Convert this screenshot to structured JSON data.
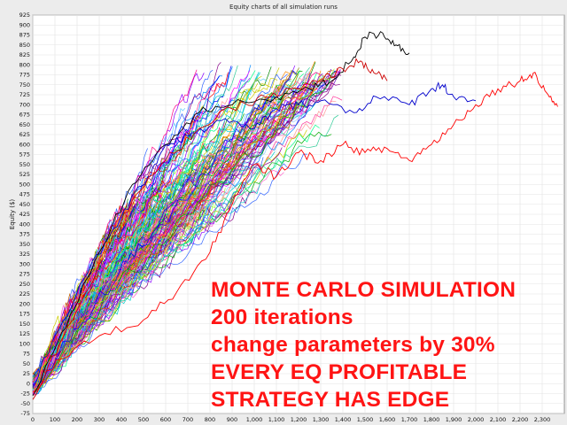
{
  "chart_data": {
    "type": "line",
    "title": "Equity charts of all simulation runs",
    "xlabel": "",
    "ylabel": "Equity ($)",
    "xlim": [
      0,
      2400
    ],
    "ylim": [
      -75,
      925
    ],
    "grid": true,
    "legend": "none",
    "x_ticks": [
      "0",
      "100",
      "200",
      "300",
      "400",
      "500",
      "600",
      "700",
      "800",
      "900",
      "1,000",
      "1,100",
      "1,200",
      "1,300",
      "1,400",
      "1,500",
      "1,600",
      "1,700",
      "1,800",
      "1,900",
      "2,000",
      "2,100",
      "2,200",
      "2,300"
    ],
    "y_ticks": [
      "-75",
      "-50",
      "-25",
      "0",
      "25",
      "50",
      "75",
      "100",
      "125",
      "150",
      "175",
      "200",
      "225",
      "250",
      "275",
      "300",
      "325",
      "350",
      "375",
      "400",
      "425",
      "450",
      "475",
      "500",
      "525",
      "550",
      "575",
      "600",
      "625",
      "650",
      "675",
      "700",
      "725",
      "750",
      "775",
      "800",
      "825",
      "850",
      "875",
      "900",
      "925"
    ],
    "highlight_series": [
      {
        "color": "#ff0000",
        "points": [
          [
            0,
            -20
          ],
          [
            120,
            60
          ],
          [
            300,
            120
          ],
          [
            500,
            160
          ],
          [
            650,
            230
          ],
          [
            800,
            330
          ],
          [
            900,
            450
          ],
          [
            1000,
            550
          ],
          [
            1100,
            520
          ],
          [
            1200,
            580
          ],
          [
            1300,
            560
          ],
          [
            1400,
            600
          ],
          [
            1500,
            580
          ],
          [
            1600,
            590
          ],
          [
            1700,
            560
          ],
          [
            1800,
            600
          ],
          [
            1900,
            650
          ],
          [
            2000,
            700
          ],
          [
            2100,
            740
          ],
          [
            2200,
            760
          ],
          [
            2260,
            780
          ],
          [
            2320,
            730
          ],
          [
            2370,
            695
          ]
        ]
      },
      {
        "color": "#0000cc",
        "points": [
          [
            0,
            -10
          ],
          [
            100,
            120
          ],
          [
            250,
            280
          ],
          [
            400,
            420
          ],
          [
            520,
            520
          ],
          [
            600,
            600
          ],
          [
            700,
            620
          ],
          [
            850,
            660
          ],
          [
            1000,
            640
          ],
          [
            1100,
            690
          ],
          [
            1200,
            700
          ],
          [
            1300,
            710
          ],
          [
            1450,
            680
          ],
          [
            1550,
            720
          ],
          [
            1700,
            700
          ],
          [
            1800,
            740
          ],
          [
            1850,
            750
          ],
          [
            1900,
            720
          ],
          [
            2000,
            710
          ]
        ]
      },
      {
        "color": "#000000",
        "points": [
          [
            0,
            -30
          ],
          [
            150,
            140
          ],
          [
            300,
            330
          ],
          [
            450,
            500
          ],
          [
            600,
            600
          ],
          [
            750,
            680
          ],
          [
            900,
            700
          ],
          [
            1100,
            720
          ],
          [
            1250,
            740
          ],
          [
            1350,
            760
          ],
          [
            1450,
            820
          ],
          [
            1500,
            870
          ],
          [
            1580,
            880
          ],
          [
            1640,
            850
          ],
          [
            1700,
            830
          ]
        ]
      },
      {
        "color": "#cc0000",
        "points": [
          [
            0,
            -40
          ],
          [
            140,
            120
          ],
          [
            300,
            300
          ],
          [
            450,
            460
          ],
          [
            600,
            560
          ],
          [
            750,
            640
          ],
          [
            900,
            690
          ],
          [
            1050,
            720
          ],
          [
            1200,
            740
          ],
          [
            1300,
            760
          ],
          [
            1400,
            790
          ],
          [
            1480,
            810
          ],
          [
            1540,
            780
          ],
          [
            1600,
            760
          ]
        ]
      }
    ],
    "bundle": {
      "count": 200,
      "x_end_range": [
        400,
        1400
      ],
      "y_end_range": [
        450,
        800
      ]
    }
  },
  "overlay": {
    "lines": [
      "MONTE CARLO SIMULATION",
      "200 iterations",
      "change parameters by 30%",
      "EVERY EQ PROFITABLE",
      "STRATEGY HAS EDGE"
    ],
    "color": "#ff1414"
  }
}
